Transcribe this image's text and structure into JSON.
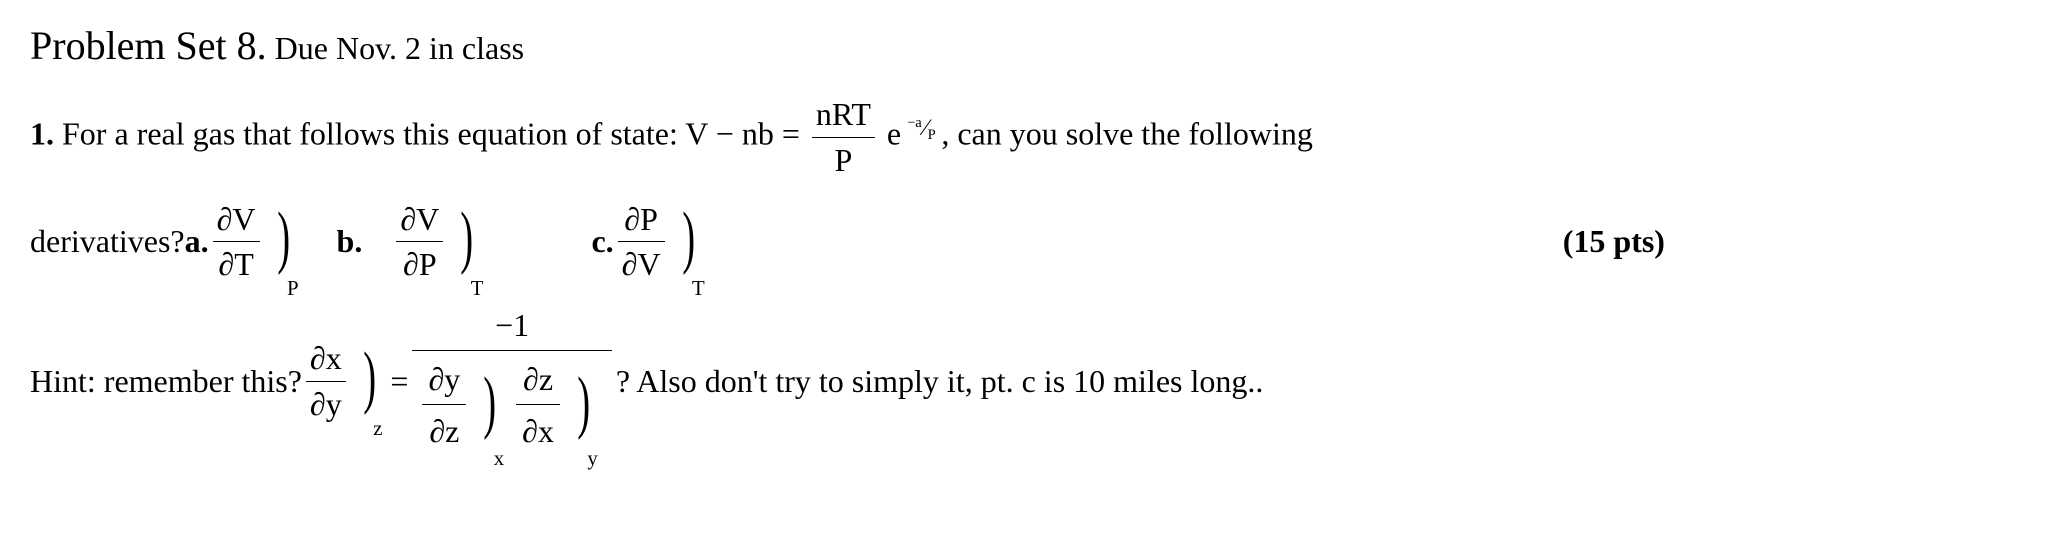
{
  "header": {
    "main": "Problem Set 8.",
    "sub": " Due Nov. 2 in class"
  },
  "problem": {
    "number": "1.",
    "lead_a": " For a real gas that follows this equation of state:  V − nb = ",
    "frac_top": "nRT",
    "frac_bot": "P",
    "exp_e": " e",
    "exp_neg_a": "−a",
    "exp_P": "P",
    "lead_b": " , can you solve the following"
  },
  "deriv": {
    "lead": "derivatives? ",
    "a_label": "a.",
    "a_num": "∂V",
    "a_den": "∂T",
    "a_sub": "P",
    "b_label": "b.",
    "b_num": "∂V",
    "b_den": "∂P",
    "b_sub": "T",
    "c_label": "c.",
    "c_num": "∂P",
    "c_den": "∂V",
    "c_sub": "T",
    "points": "(15 pts)"
  },
  "hint": {
    "lead": "Hint: remember this?  ",
    "lhs_num": "∂x",
    "lhs_den": "∂y",
    "lhs_sub": "z",
    "eq": "  = ",
    "rhs_num": "−1",
    "d1_num": "∂y",
    "d1_den": "∂z",
    "d1_sub": "x",
    "d2_num": "∂z",
    "d2_den": "∂x",
    "d2_sub": "y",
    "tail": " ? Also don't try to simply it, pt. c is 10 miles long.."
  }
}
